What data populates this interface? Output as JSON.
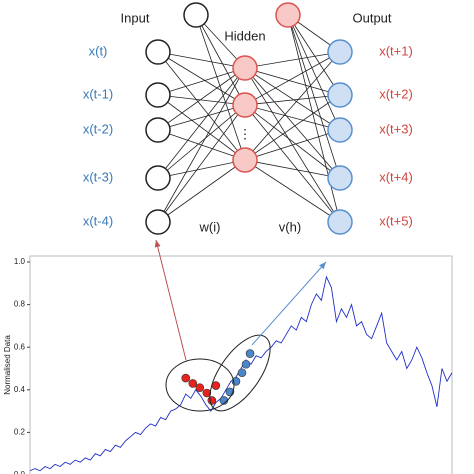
{
  "network": {
    "input_title": "Input",
    "hidden_title": "Hidden",
    "output_title": "Output",
    "inputs": [
      "x(t)",
      "x(t-1)",
      "x(t-2)",
      "x(t-3)",
      "x(t-4)"
    ],
    "outputs": [
      "x(t+1)",
      "x(t+2)",
      "x(t+3)",
      "x(t+4)",
      "x(t+5)"
    ],
    "hidden_ellipsis": "⋮",
    "input_weights": "w(i)",
    "hidden_weights": "v(h)"
  },
  "chart_data": {
    "type": "line",
    "y_label": "Normalised Data",
    "ylim": [
      0,
      1
    ],
    "yticks": [
      {
        "value": 0,
        "label": "0.0"
      },
      0.2,
      0.4,
      0.6,
      0.8,
      {
        "value": 1,
        "label": "1.0"
      }
    ],
    "series": [
      {
        "color": "#1f2fc8",
        "values": [
          0.02,
          0.03,
          0.02,
          0.04,
          0.03,
          0.05,
          0.04,
          0.06,
          0.05,
          0.07,
          0.06,
          0.08,
          0.07,
          0.1,
          0.09,
          0.12,
          0.11,
          0.14,
          0.13,
          0.16,
          0.18,
          0.2,
          0.19,
          0.22,
          0.24,
          0.23,
          0.27,
          0.26,
          0.3,
          0.31,
          0.33,
          0.38,
          0.36,
          0.4,
          0.37,
          0.33,
          0.3,
          0.34,
          0.36,
          0.4,
          0.44,
          0.46,
          0.5,
          0.54,
          0.52,
          0.56,
          0.55,
          0.58,
          0.6,
          0.63,
          0.62,
          0.66,
          0.7,
          0.68,
          0.74,
          0.72,
          0.8,
          0.85,
          0.82,
          0.93,
          0.88,
          0.72,
          0.78,
          0.74,
          0.8,
          0.7,
          0.72,
          0.66,
          0.64,
          0.7,
          0.76,
          0.62,
          0.58,
          0.54,
          0.58,
          0.5,
          0.54,
          0.6,
          0.55,
          0.48,
          0.42,
          0.32,
          0.5,
          0.44,
          0.48
        ]
      }
    ],
    "input_window": {
      "color": "#e8231f",
      "x": [
        31.0,
        32.4,
        33.8,
        35.2,
        36.2,
        37.0
      ],
      "values": [
        0.455,
        0.43,
        0.41,
        0.385,
        0.35,
        0.42
      ]
    },
    "output_window": {
      "color": "#4a86c8",
      "x": [
        38.6,
        39.8,
        41.0,
        42.2,
        43.0,
        43.8
      ],
      "values": [
        0.35,
        0.39,
        0.44,
        0.48,
        0.52,
        0.57
      ]
    }
  }
}
